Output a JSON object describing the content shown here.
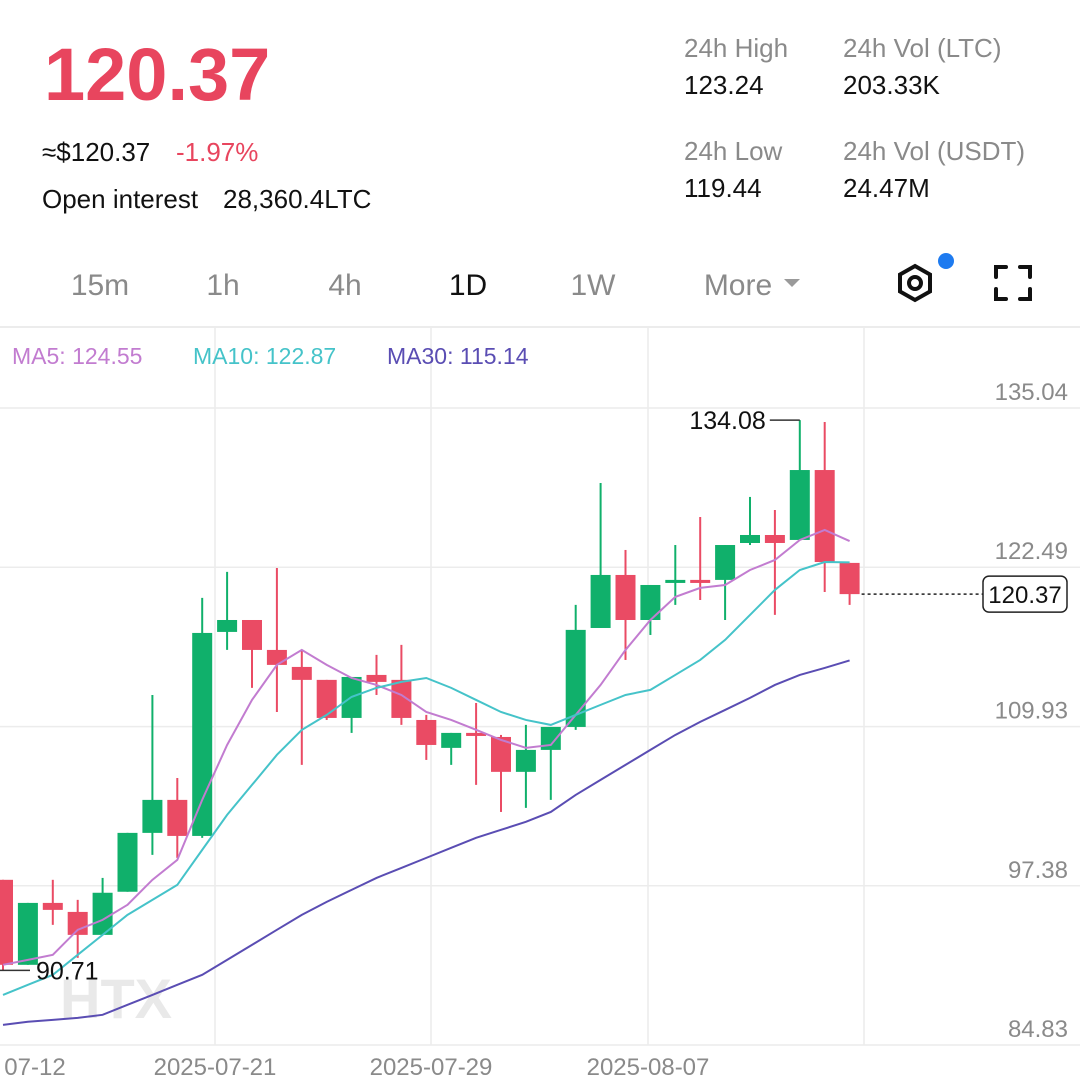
{
  "header": {
    "price": "120.37",
    "usd_price": "≈$120.37",
    "change": "-1.97%",
    "open_interest_label": "Open interest",
    "open_interest": "28,360.4LTC",
    "stats": [
      {
        "label": "24h High",
        "value": "123.24"
      },
      {
        "label": "24h Vol (LTC)",
        "value": "203.33K"
      },
      {
        "label": "24h Low",
        "value": "119.44"
      },
      {
        "label": "24h Vol (USDT)",
        "value": "24.47M"
      }
    ]
  },
  "timeframes": [
    "15m",
    "1h",
    "4h",
    "1D",
    "1W",
    "More"
  ],
  "active_timeframe_index": 3,
  "chart_data": {
    "type": "candlestick",
    "open": [
      97.85,
      91.15,
      96.03,
      95.32,
      93.51,
      96.91,
      101.55,
      104.15,
      101.31,
      117.39,
      118.33,
      115.97,
      114.63,
      113.61,
      110.61,
      114.0,
      113.61,
      110.45,
      108.25,
      109.43,
      109.11,
      106.36,
      108.09,
      109.9,
      117.7,
      121.88,
      118.33,
      121.25,
      121.49,
      121.49,
      124.4,
      125.03,
      124.64,
      130.15,
      122.83
    ],
    "high": [
      97.85,
      96.03,
      97.85,
      96.27,
      98.0,
      101.55,
      112.42,
      105.88,
      120.07,
      122.12,
      118.33,
      122.43,
      115.97,
      113.61,
      113.84,
      115.58,
      116.37,
      110.85,
      109.43,
      111.79,
      109.27,
      110.06,
      109.9,
      119.52,
      129.13,
      123.85,
      121.09,
      124.24,
      126.45,
      124.24,
      128.03,
      127.0,
      134.08,
      133.94,
      122.83
    ],
    "low": [
      90.71,
      91.15,
      94.3,
      91.7,
      93.51,
      96.91,
      99.82,
      99.58,
      101.16,
      115.97,
      112.98,
      111.08,
      106.91,
      110.45,
      109.43,
      112.42,
      110.06,
      107.3,
      106.91,
      105.33,
      103.2,
      103.52,
      104.15,
      109.67,
      117.7,
      115.18,
      117.15,
      119.52,
      119.91,
      118.33,
      124.24,
      118.73,
      124.64,
      120.54,
      119.52
    ],
    "close": [
      91.15,
      96.03,
      95.48,
      93.51,
      96.83,
      101.55,
      104.15,
      101.31,
      117.31,
      118.33,
      115.97,
      114.79,
      113.61,
      110.61,
      113.84,
      113.45,
      110.61,
      108.48,
      109.43,
      109.19,
      106.36,
      108.09,
      109.9,
      117.55,
      121.88,
      118.33,
      121.09,
      121.49,
      121.25,
      124.24,
      125.03,
      124.4,
      130.15,
      122.9,
      120.37
    ],
    "up_color": "#10b06b",
    "down_color": "#ea4b64",
    "series": [
      {
        "name": "MA5: 124.55",
        "color": "#c27cd0",
        "values": [
          91.15,
          91.54,
          91.94,
          93.91,
          94.69,
          95.88,
          97.85,
          99.42,
          104.15,
          108.48,
          112.03,
          114.79,
          115.97,
          114.79,
          113.76,
          113.21,
          112.42,
          111.08,
          110.45,
          109.67,
          108.88,
          108.25,
          108.48,
          110.85,
          113.21,
          115.97,
          118.33,
          120.15,
          120.86,
          121.09,
          122.27,
          123.06,
          124.64,
          125.43,
          124.55
        ]
      },
      {
        "name": "MA10: 122.87",
        "color": "#45c3c9",
        "values": [
          88.78,
          89.57,
          90.36,
          91.94,
          93.51,
          95.09,
          96.27,
          97.45,
          100.21,
          102.97,
          105.33,
          107.7,
          109.67,
          110.85,
          112.27,
          112.98,
          113.45,
          113.76,
          112.98,
          112.03,
          111.08,
          110.45,
          110.06,
          110.85,
          111.64,
          112.42,
          112.82,
          114.0,
          115.18,
          116.76,
          118.73,
          120.7,
          122.27,
          122.9,
          122.87
        ]
      },
      {
        "name": "MA30: 115.14",
        "color": "#5a4db3",
        "values": [
          86.42,
          86.66,
          86.81,
          86.97,
          87.21,
          88.0,
          88.78,
          89.57,
          90.36,
          91.54,
          92.72,
          93.91,
          95.09,
          96.11,
          97.06,
          98.0,
          98.79,
          99.58,
          100.37,
          101.16,
          101.79,
          102.42,
          103.2,
          104.54,
          105.73,
          106.91,
          108.09,
          109.27,
          110.3,
          111.24,
          112.19,
          113.21,
          114.0,
          114.55,
          115.14
        ]
      }
    ],
    "ylim": [
      84.83,
      135.04
    ],
    "yticks": [
      135.04,
      122.49,
      109.93,
      97.38,
      84.83
    ],
    "x_labels": [
      "07-12",
      "2025-07-21",
      "2025-07-29",
      "2025-08-07"
    ],
    "watermark": "HTX",
    "grid": true
  }
}
